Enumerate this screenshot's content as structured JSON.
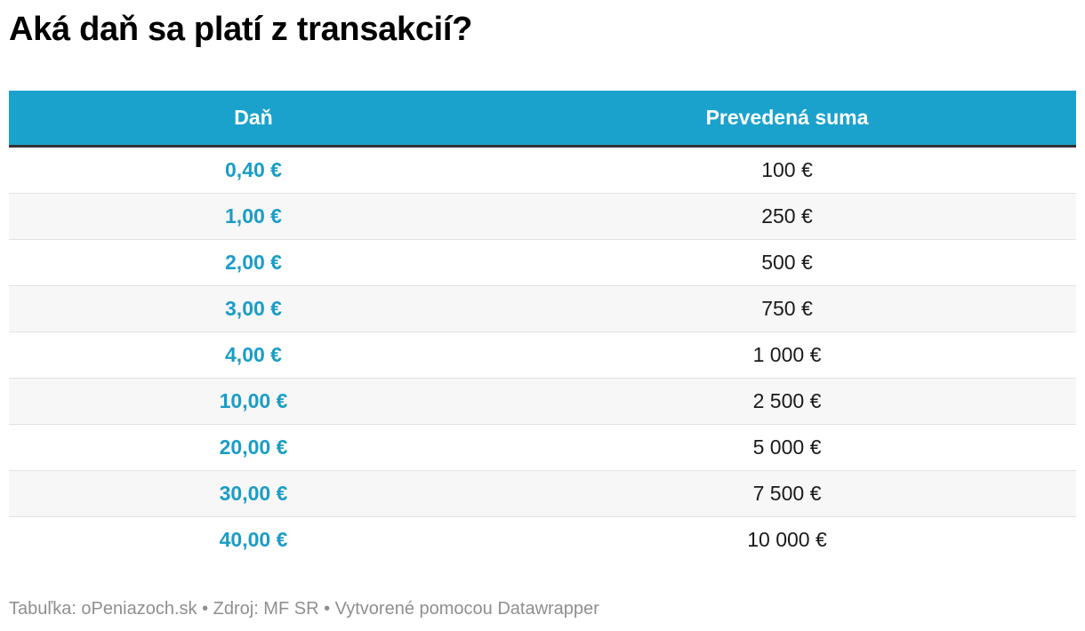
{
  "title": "Aká daň sa platí z transakcií?",
  "chart_data": {
    "type": "table",
    "columns": [
      "Daň",
      "Prevedená suma"
    ],
    "rows": [
      {
        "tax": "0,40 €",
        "amount": "100 €"
      },
      {
        "tax": "1,00 €",
        "amount": "250 €"
      },
      {
        "tax": "2,00 €",
        "amount": "500 €"
      },
      {
        "tax": "3,00 €",
        "amount": "750 €"
      },
      {
        "tax": "4,00 €",
        "amount": "1 000 €"
      },
      {
        "tax": "10,00 €",
        "amount": "2 500 €"
      },
      {
        "tax": "20,00 €",
        "amount": "5 000 €"
      },
      {
        "tax": "30,00 €",
        "amount": "7 500 €"
      },
      {
        "tax": "40,00 €",
        "amount": "10 000 €"
      }
    ],
    "tax_values": [
      0.4,
      1.0,
      2.0,
      3.0,
      4.0,
      10.0,
      20.0,
      30.0,
      40.0
    ],
    "amount_values": [
      100,
      250,
      500,
      750,
      1000,
      2500,
      5000,
      7500,
      10000
    ]
  },
  "footer": "Tabuľka: oPeniazoch.sk • Zdroj: MF SR • Vytvorené pomocou Datawrapper",
  "colors": {
    "header_bg": "#1ba2cc",
    "tax_text": "#1a9dc6",
    "header_rule": "#333333",
    "stripe": "#f7f7f7",
    "footer_text": "#8f8f8f"
  }
}
